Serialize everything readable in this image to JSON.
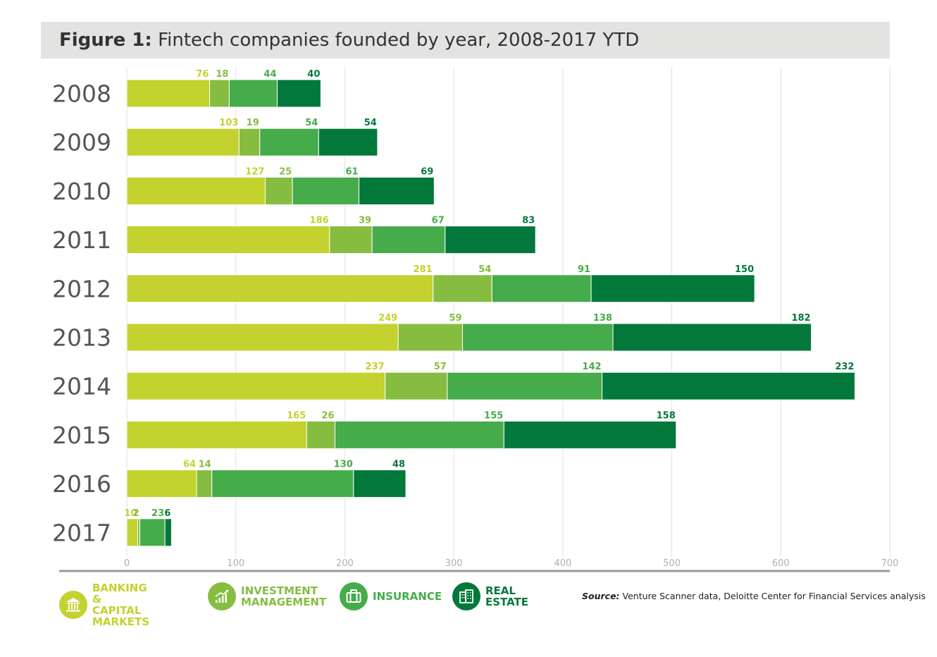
{
  "title": {
    "prefix": "Figure 1:",
    "text": "Fintech companies founded by year, 2008-2017 YTD"
  },
  "source": {
    "label": "Source:",
    "text": "Venture Scanner data, Deloitte Center for Financial Services analysis"
  },
  "colors": {
    "banking": "#c3d22f",
    "investment": "#86bd41",
    "insurance": "#46ab4b",
    "real_estate": "#02783b",
    "grid": "#e2e2e2",
    "axis": "#9a9a9a",
    "year_label": "#555555",
    "tick_label": "#b0b0b0"
  },
  "legend": [
    {
      "key": "banking",
      "line1": "BANKING &",
      "line2": "CAPITAL MARKETS",
      "icon": "bank-icon"
    },
    {
      "key": "investment",
      "line1": "INVESTMENT",
      "line2": "MANAGEMENT",
      "icon": "growth-chart-icon"
    },
    {
      "key": "insurance",
      "line1": "INSURANCE",
      "line2": "",
      "icon": "briefcase-icon"
    },
    {
      "key": "real_estate",
      "line1": "REAL ESTATE",
      "line2": "",
      "icon": "buildings-icon"
    }
  ],
  "chart_data": {
    "type": "bar",
    "orientation": "horizontal",
    "stacked": true,
    "categories": [
      "2008",
      "2009",
      "2010",
      "2011",
      "2012",
      "2013",
      "2014",
      "2015",
      "2016",
      "2017"
    ],
    "series": [
      {
        "name": "BANKING & CAPITAL MARKETS",
        "key": "banking",
        "values": [
          76,
          103,
          127,
          186,
          281,
          249,
          237,
          165,
          64,
          10
        ]
      },
      {
        "name": "INVESTMENT MANAGEMENT",
        "key": "investment",
        "values": [
          18,
          19,
          25,
          39,
          54,
          59,
          57,
          26,
          14,
          2
        ]
      },
      {
        "name": "INSURANCE",
        "key": "insurance",
        "values": [
          44,
          54,
          61,
          67,
          91,
          138,
          142,
          155,
          130,
          23
        ]
      },
      {
        "name": "REAL ESTATE",
        "key": "real_estate",
        "values": [
          40,
          54,
          69,
          83,
          150,
          182,
          232,
          158,
          48,
          6
        ]
      }
    ],
    "xlim": [
      0,
      700
    ],
    "xticks": [
      0,
      100,
      200,
      300,
      400,
      500,
      600,
      700
    ],
    "grid": true,
    "legend_position": "bottom"
  }
}
